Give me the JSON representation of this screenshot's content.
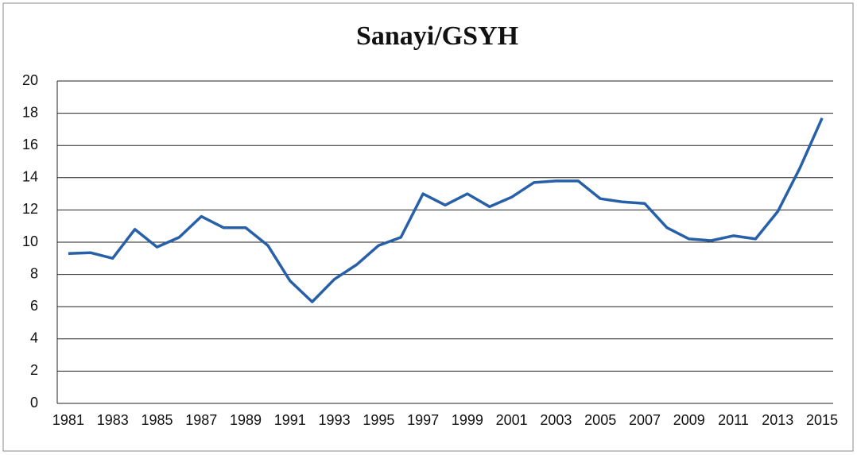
{
  "chart_data": {
    "type": "line",
    "title": "Sanayi/GSYH",
    "categories": [
      "1981",
      null,
      "1983",
      null,
      "1985",
      null,
      "1987",
      null,
      "1989",
      null,
      "1991",
      null,
      "1993",
      null,
      "1995",
      null,
      "1997",
      null,
      "1999",
      null,
      "2001",
      null,
      "2003",
      null,
      "2005",
      null,
      "2007",
      null,
      "2009",
      null,
      "2011",
      null,
      "2013",
      null,
      "2015"
    ],
    "series": [
      {
        "name": "Sanayi/GSYH",
        "color": "#2760a8",
        "values": [
          9.3,
          9.35,
          9.0,
          10.8,
          9.7,
          10.3,
          11.6,
          10.9,
          10.9,
          9.8,
          7.6,
          6.3,
          7.7,
          8.6,
          9.8,
          10.3,
          13.0,
          12.3,
          13.0,
          12.2,
          12.8,
          13.7,
          13.8,
          13.8,
          12.7,
          12.5,
          12.4,
          10.9,
          10.2,
          10.1,
          10.4,
          10.2,
          11.9,
          14.6,
          17.7
        ]
      }
    ],
    "ylim": [
      0,
      20
    ],
    "yticks": [
      0,
      2,
      4,
      6,
      8,
      10,
      12,
      14,
      16,
      18,
      20
    ],
    "grid": true
  }
}
